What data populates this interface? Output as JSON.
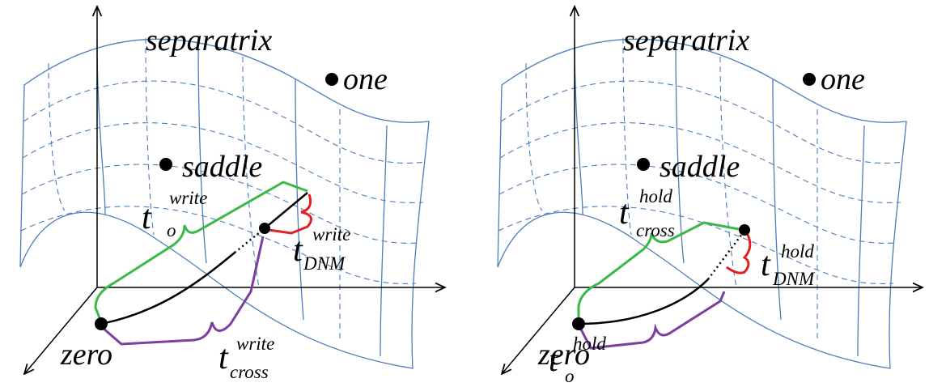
{
  "panels": [
    {
      "surface_label": "separatrix",
      "points": [
        "one",
        "saddle",
        "zero"
      ],
      "times": [
        {
          "base": "t",
          "superscript": "write",
          "subscript": "o"
        },
        {
          "base": "t",
          "superscript": "write",
          "subscript": "DNM"
        },
        {
          "base": "t",
          "superscript": "write",
          "subscript": "cross"
        }
      ]
    },
    {
      "surface_label": "separatrix",
      "points": [
        "one",
        "saddle",
        "zero"
      ],
      "times": [
        {
          "base": "t",
          "superscript": "hold",
          "subscript": "cross"
        },
        {
          "base": "t",
          "superscript": "hold",
          "subscript": "DNM"
        },
        {
          "base": "t",
          "superscript": "hold",
          "subscript": "o"
        }
      ]
    }
  ]
}
